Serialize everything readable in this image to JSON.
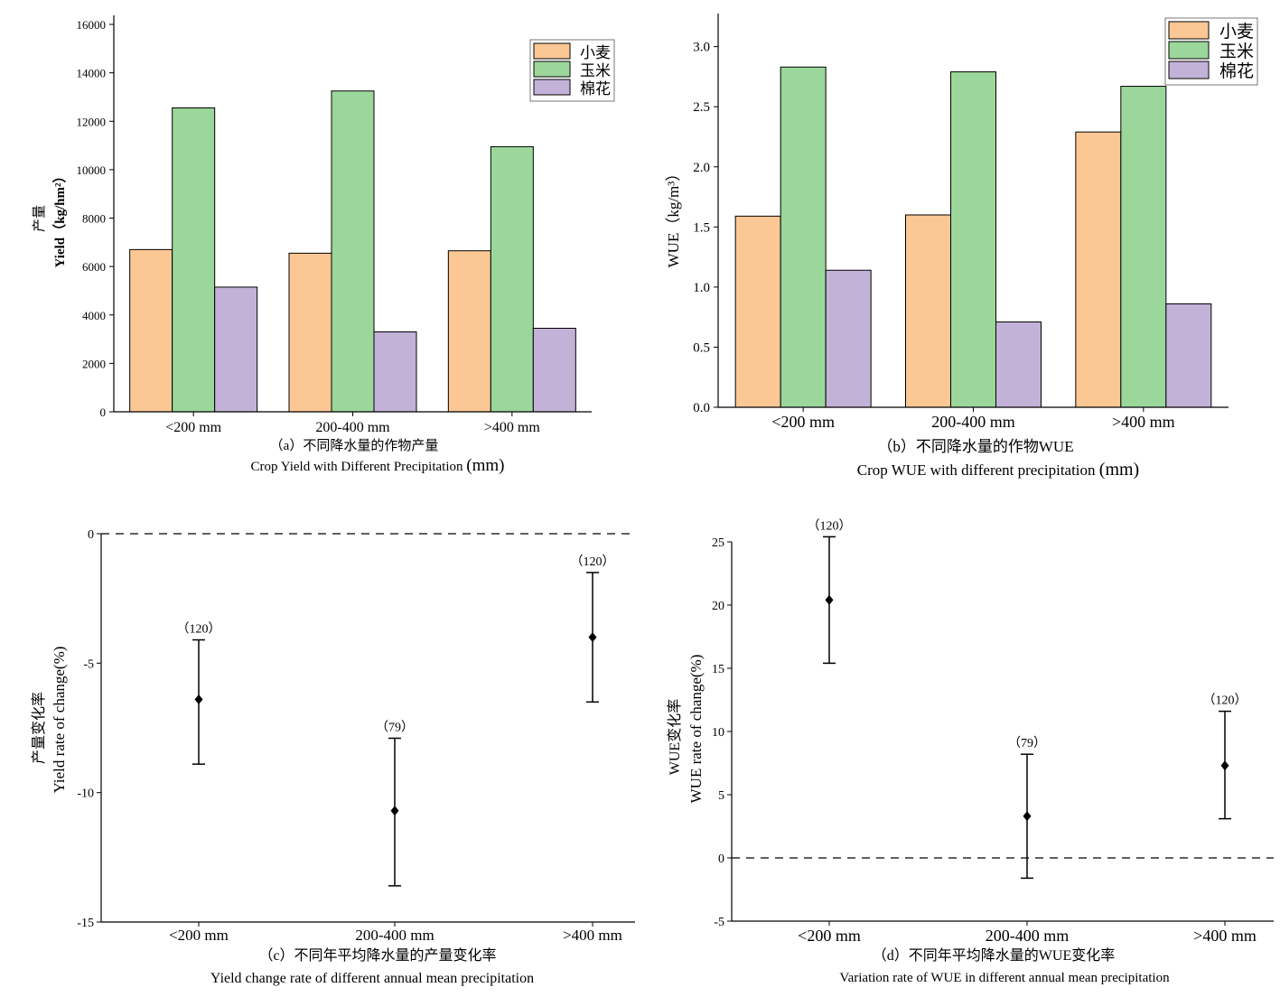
{
  "colors": {
    "wheat": "#FBC794",
    "maize": "#9BD79A",
    "cotton": "#C3B2D8",
    "axis": "#000000",
    "marker": "#000000"
  },
  "chart_data": [
    {
      "id": "a",
      "type": "bar",
      "categories": [
        "<200 mm",
        "200-400 mm",
        ">400 mm"
      ],
      "series": [
        {
          "name": "小麦",
          "values": [
            6700,
            6550,
            6650
          ]
        },
        {
          "name": "玉米",
          "values": [
            12550,
            13250,
            10950
          ]
        },
        {
          "name": "棉花",
          "values": [
            5150,
            3300,
            3450
          ]
        }
      ],
      "ylim": [
        0,
        16000
      ],
      "yticks": [
        "0",
        "2000",
        "4000",
        "6000",
        "8000",
        "10000",
        "12000",
        "14000",
        "16000"
      ],
      "ylabel_cn": "产量",
      "ylabel_en": "Yield（kg/hm²）",
      "caption_cn": "（a）不同降水量的作物产量",
      "caption_en": "Crop Yield with Different Precipitation",
      "caption_unit": "(mm)",
      "legend": "top-right"
    },
    {
      "id": "b",
      "type": "bar",
      "categories": [
        "<200 mm",
        "200-400 mm",
        ">400 mm"
      ],
      "series": [
        {
          "name": "小麦",
          "values": [
            1.59,
            1.6,
            2.29
          ]
        },
        {
          "name": "玉米",
          "values": [
            2.83,
            2.79,
            2.67
          ]
        },
        {
          "name": "棉花",
          "values": [
            1.14,
            0.71,
            0.86
          ]
        }
      ],
      "ylim": [
        0,
        3.2
      ],
      "yticks": [
        "0.0",
        "0.5",
        "1.0",
        "1.5",
        "2.0",
        "2.5",
        "3.0"
      ],
      "ylabel": "WUE（kg/m³）",
      "caption_cn": "（b）不同降水量的作物WUE",
      "caption_en": "Crop WUE with different precipitation",
      "caption_unit": "(mm)",
      "legend": "top-right"
    },
    {
      "id": "c",
      "type": "scatter",
      "categories": [
        "<200 mm",
        "200-400 mm",
        ">400 mm"
      ],
      "points": [
        {
          "mean": -6.4,
          "lower": -8.9,
          "upper": -4.1,
          "n": "（120）"
        },
        {
          "mean": -10.7,
          "lower": -13.6,
          "upper": -7.9,
          "n": "（79）"
        },
        {
          "mean": -4.0,
          "lower": -6.5,
          "upper": -1.5,
          "n": "（120）"
        }
      ],
      "ylim": [
        -15,
        0
      ],
      "yticks": [
        "-15",
        "-10",
        "-5",
        "0"
      ],
      "reference_line": 0,
      "ylabel_cn": "产量变化率",
      "ylabel_en": "Yield rate of change(%)",
      "caption_cn": "（c）不同年平均降水量的产量变化率",
      "caption_en": "Yield change rate of different annual mean precipitation"
    },
    {
      "id": "d",
      "type": "scatter",
      "categories": [
        "<200 mm",
        "200-400 mm",
        ">400 mm"
      ],
      "points": [
        {
          "mean": 20.4,
          "lower": 15.4,
          "upper": 25.4,
          "n": "（120）"
        },
        {
          "mean": 3.3,
          "lower": -1.6,
          "upper": 8.2,
          "n": "（79）"
        },
        {
          "mean": 7.3,
          "lower": 3.1,
          "upper": 11.6,
          "n": "（120）"
        }
      ],
      "ylim": [
        -5,
        25
      ],
      "yticks": [
        "-5",
        "0",
        "5",
        "10",
        "15",
        "20",
        "25"
      ],
      "reference_line": 0,
      "ylabel_cn": "WUE变化率",
      "ylabel_en": "WUE rate of change(%)",
      "caption_cn": "（d）不同年平均降水量的WUE变化率",
      "caption_en": "Variation rate of WUE in different annual mean precipitation"
    }
  ]
}
